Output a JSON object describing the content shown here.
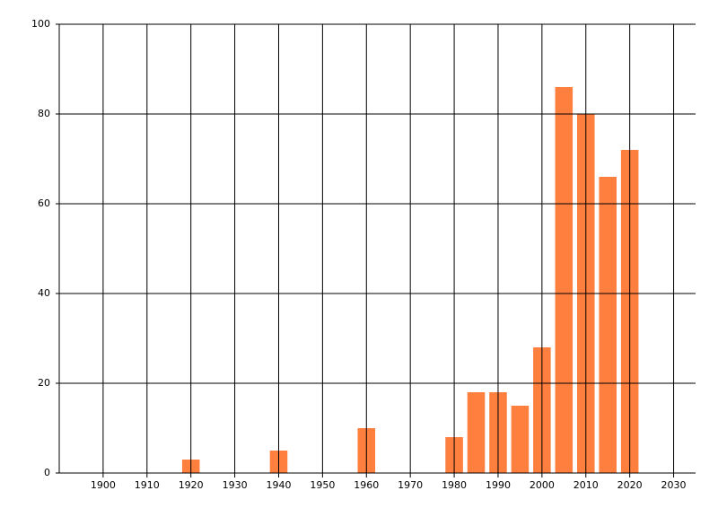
{
  "chart_data": {
    "type": "bar",
    "x": [
      1920,
      1940,
      1960,
      1980,
      1985,
      1990,
      1995,
      2000,
      2005,
      2010,
      2015,
      2020
    ],
    "values": [
      3,
      5,
      10,
      8,
      18,
      18,
      15,
      28,
      86,
      80,
      66,
      72
    ],
    "color": "#ff7f3f",
    "bar_width": 4,
    "xlim": [
      1890,
      2035
    ],
    "xticks": [
      1900,
      1910,
      1920,
      1930,
      1940,
      1950,
      1960,
      1970,
      1980,
      1990,
      2000,
      2010,
      2020,
      2030
    ],
    "ylim": [
      0,
      100
    ],
    "yticks": [
      0,
      20,
      40,
      60,
      80,
      100
    ],
    "grid": true
  }
}
